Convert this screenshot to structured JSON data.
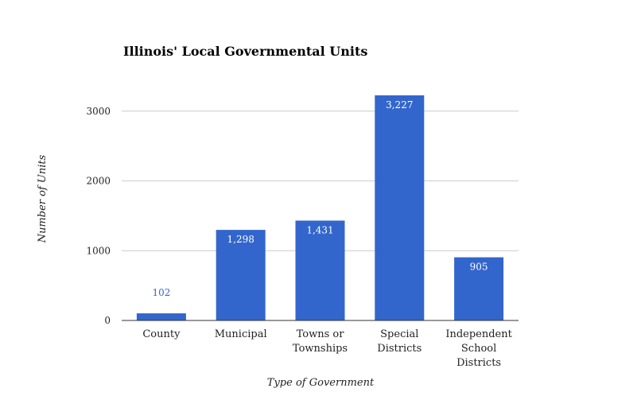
{
  "chart_data": {
    "type": "bar",
    "title": "Illinois' Local Governmental Units",
    "xlabel": "Type of Government",
    "ylabel": "Number of Units",
    "categories": [
      [
        "County"
      ],
      [
        "Municipal"
      ],
      [
        "Towns or",
        "Townships"
      ],
      [
        "Special",
        "Districts"
      ],
      [
        "Independent",
        "School",
        "Districts"
      ]
    ],
    "values": [
      102,
      1298,
      1431,
      3227,
      905
    ],
    "data_labels": [
      "102",
      "1,298",
      "1,431",
      "3,227",
      "905"
    ],
    "ylim": [
      0,
      3000
    ],
    "yticks": [
      0,
      1000,
      2000,
      3000
    ],
    "ytick_labels": [
      "0",
      "1000",
      "2000",
      "3000"
    ],
    "grid": true,
    "legend": "none",
    "colors": {
      "bar": "#3366cc",
      "label_inside": "#ffffff",
      "label_outside": "#3366cc",
      "grid": "#cccccc",
      "axis": "#333333"
    }
  }
}
